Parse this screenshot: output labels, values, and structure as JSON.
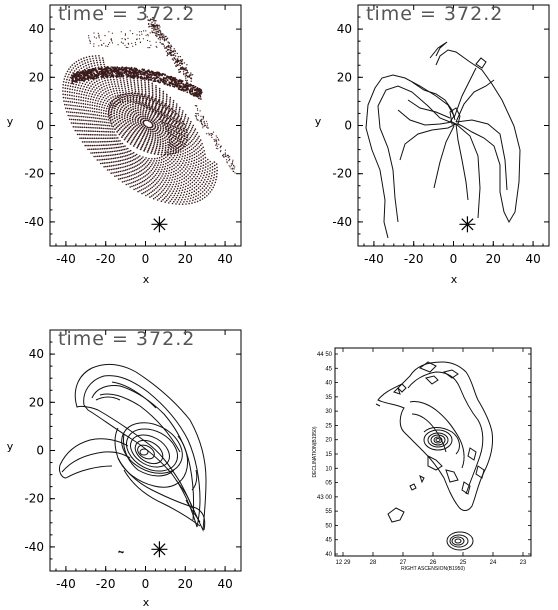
{
  "chart_data": [
    {
      "type": "scatter",
      "title": "time = 372.2",
      "xlabel": "x",
      "ylabel": "y",
      "xlim": [
        -48,
        48
      ],
      "ylim": [
        -50,
        50
      ],
      "xticks": [
        "-40",
        "-20",
        "0",
        "20",
        "40"
      ],
      "yticks": [
        "40",
        "20",
        "0",
        "-20",
        "-40"
      ],
      "marker_position": {
        "x": 7,
        "y": -41
      },
      "color": "#3a1a1a",
      "description": "particle distribution"
    },
    {
      "type": "contour",
      "title": "time = 372.2",
      "xlabel": "x",
      "ylabel": "y",
      "xlim": [
        -48,
        48
      ],
      "ylim": [
        -50,
        50
      ],
      "xticks": [
        "-40",
        "-20",
        "0",
        "20",
        "40"
      ],
      "yticks": [
        "40",
        "20",
        "0",
        "-20",
        "-40"
      ],
      "marker_position": {
        "x": 7,
        "y": -41
      }
    },
    {
      "type": "contour",
      "title": "time = 372.2",
      "xlabel": "x",
      "ylabel": "y",
      "xlim": [
        -48,
        48
      ],
      "ylim": [
        -50,
        50
      ],
      "xticks": [
        "-40",
        "-20",
        "0",
        "20",
        "40"
      ],
      "yticks": [
        "40",
        "20",
        "0",
        "-20",
        "-40"
      ],
      "marker_position": {
        "x": 7,
        "y": -41
      }
    },
    {
      "type": "contour",
      "title": "",
      "xlabel": "RIGHT ASCENSION(B1950)",
      "ylabel": "DECLINATION(B1950)",
      "xticks": [
        "12 29",
        "28",
        "27",
        "26",
        "25",
        "24",
        "23"
      ],
      "yticks": [
        "44 50",
        "45",
        "40",
        "35",
        "30",
        "25",
        "20",
        "15",
        "10",
        "05",
        "43 00",
        "55",
        "50",
        "45",
        "40"
      ]
    }
  ]
}
